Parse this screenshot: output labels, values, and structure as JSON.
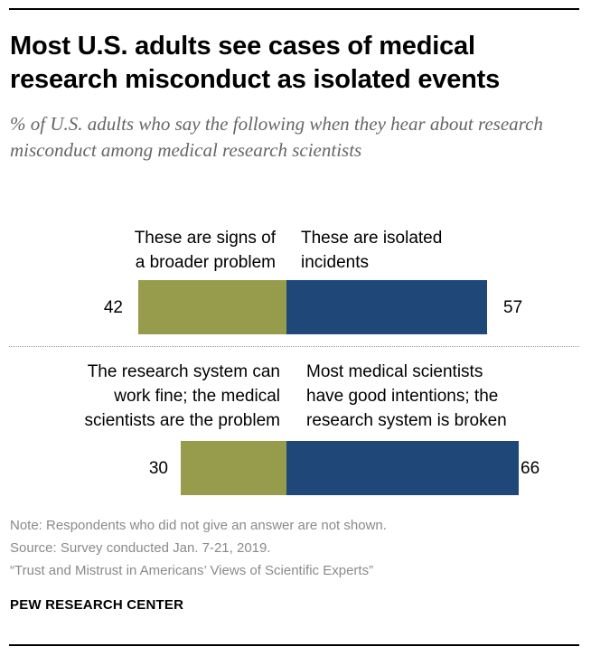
{
  "title": "Most U.S. adults see cases of medical research misconduct as isolated events",
  "subtitle": "% of U.S. adults who say the following when they hear about research misconduct among medical research scientists",
  "colors": {
    "left_series": "#969c4b",
    "right_series": "#1f4879",
    "note_text": "#8a8a8a",
    "subtitle_text": "#666666"
  },
  "chart_data": {
    "type": "bar",
    "orientation": "horizontal",
    "stacked": true,
    "title": "Most U.S. adults see cases of medical research misconduct as isolated events",
    "unit": "% of U.S. adults",
    "xlim": [
      0,
      100
    ],
    "rows": [
      {
        "left": {
          "label": "These are signs of a broader problem",
          "value": 42
        },
        "right": {
          "label": "These are isolated incidents",
          "value": 57
        }
      },
      {
        "left": {
          "label": "The research system can work fine; the medical scientists are the problem",
          "value": 30
        },
        "right": {
          "label": "Most medical scientists have good intentions; the research system is broken",
          "value": 66
        }
      }
    ]
  },
  "rows": [
    {
      "left_label": [
        "These are signs of",
        "a broader problem"
      ],
      "right_label": [
        "These are isolated",
        "incidents"
      ],
      "left_value": "42",
      "right_value": "57"
    },
    {
      "left_label": [
        "The research system can",
        "work fine; the medical",
        "scientists are the problem"
      ],
      "right_label": [
        "Most medical scientists",
        "have good intentions; the",
        "research system is broken"
      ],
      "left_value": "30",
      "right_value": "66"
    }
  ],
  "notes": [
    "Note: Respondents who did not give an answer are not shown.",
    "Source: Survey conducted Jan. 7-21, 2019.",
    "“Trust and Mistrust in Americans’ Views of Scientific Experts”"
  ],
  "brand": "PEW RESEARCH CENTER"
}
